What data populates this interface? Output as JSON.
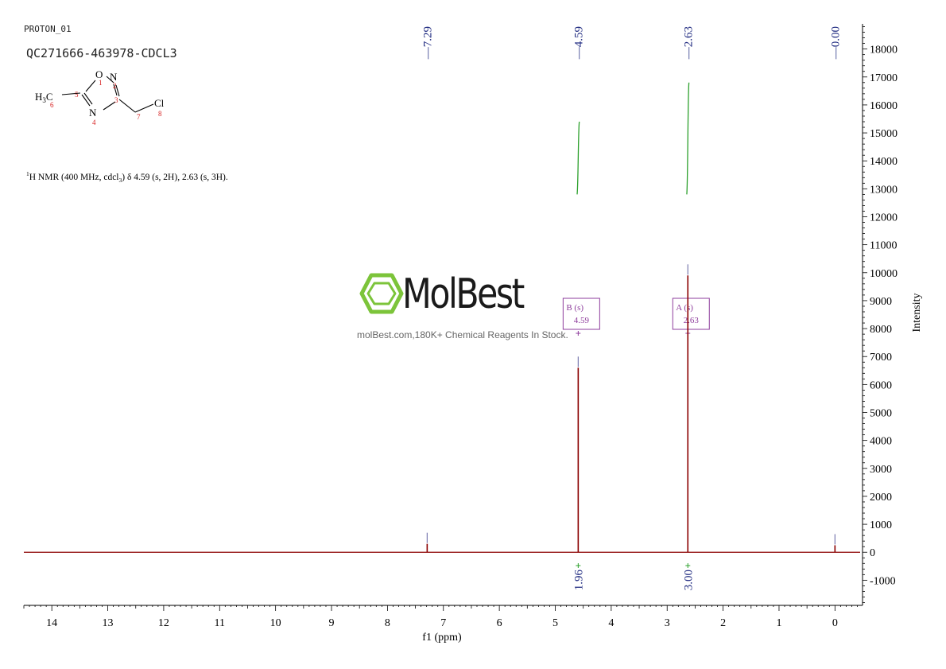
{
  "header": {
    "spectrum_name": "PROTON_01",
    "sample_id": "QC271666-463978-CDCL3",
    "nmr_description": {
      "prefix_sup": "1",
      "part1": "H NMR (400 MHz, cdcl",
      "sub": "3",
      "part2": ") δ 4.59 (s, 2H), 2.63 (s, 3H)."
    }
  },
  "structure": {
    "group_label": "H3C",
    "atoms": [
      "O",
      "N",
      "N",
      "Cl"
    ],
    "atom_numbers": [
      "1",
      "2",
      "3",
      "4",
      "5",
      "6",
      "7",
      "8"
    ]
  },
  "watermark": {
    "name": "MolBest",
    "tagline": "molBest.com,180K+ Chemical Reagents In Stock."
  },
  "colors": {
    "spectrum": "#8b0000",
    "peak_label": "#1f2a80",
    "integral_curve": "#2ca02c",
    "multiplet_box": "#8e3d9c",
    "logo_green": "#7cc43a",
    "axis": "#000000"
  },
  "chart_data": {
    "type": "line",
    "xlabel": "f1 (ppm)",
    "ylabel": "Intensity",
    "xlim": [
      14.5,
      -0.45
    ],
    "ylim": [
      -1900,
      18900
    ],
    "x_ticks": [
      14,
      13,
      12,
      11,
      10,
      9,
      8,
      7,
      6,
      5,
      4,
      3,
      2,
      1,
      0
    ],
    "y_ticks": [
      -1000,
      0,
      1000,
      2000,
      3000,
      4000,
      5000,
      6000,
      7000,
      8000,
      9000,
      10000,
      11000,
      12000,
      13000,
      14000,
      15000,
      16000,
      17000,
      18000
    ],
    "peaks": [
      {
        "ppm": 7.29,
        "intensity": 300,
        "label": "7.29"
      },
      {
        "ppm": 4.59,
        "intensity": 6600,
        "label": "4.59"
      },
      {
        "ppm": 2.63,
        "intensity": 9900,
        "label": "2.63"
      },
      {
        "ppm": 0.0,
        "intensity": 250,
        "label": "0.00"
      }
    ],
    "integrals": [
      {
        "from": 4.62,
        "to": 4.56,
        "value": "1.96",
        "curve_low": 12800,
        "curve_high": 15400
      },
      {
        "from": 2.66,
        "to": 2.6,
        "value": "3.00",
        "curve_low": 12800,
        "curve_high": 16800
      }
    ],
    "multiplets": [
      {
        "letter": "B",
        "type": "(s)",
        "shift": "4.59",
        "ppm": 4.59
      },
      {
        "letter": "A",
        "type": "(s)",
        "shift": "2.63",
        "ppm": 2.63
      }
    ]
  }
}
